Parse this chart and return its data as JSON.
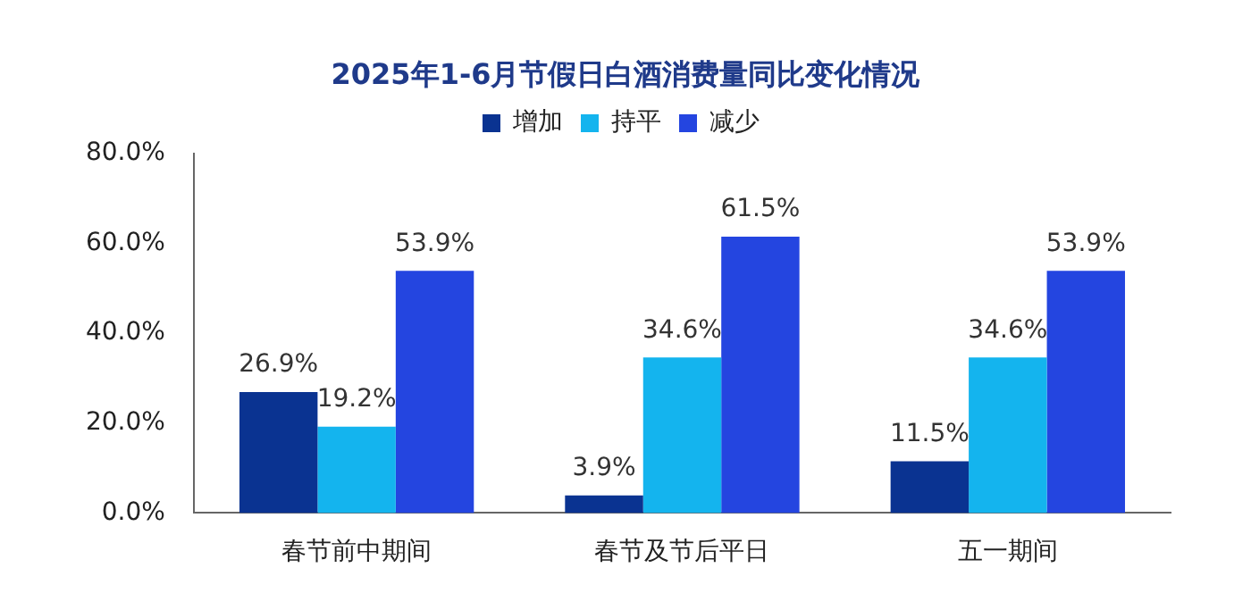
{
  "chart_data": {
    "type": "bar",
    "title": "2025年1-6月节假日白酒消费量同比变化情况",
    "categories": [
      "春节前中期间",
      "春节及节后平日",
      "五一期间"
    ],
    "series": [
      {
        "name": "增加",
        "color": "#0a3391",
        "values": [
          26.9,
          3.9,
          11.5
        ],
        "value_labels": [
          "26.9%",
          "3.9%",
          "11.5%"
        ]
      },
      {
        "name": "持平",
        "color": "#14b4ee",
        "values": [
          19.2,
          34.6,
          34.6
        ],
        "value_labels": [
          "19.2%",
          "34.6%",
          "34.6%"
        ]
      },
      {
        "name": "减少",
        "color": "#2445e0",
        "values": [
          53.9,
          61.5,
          53.9
        ],
        "value_labels": [
          "53.9%",
          "61.5%",
          "53.9%"
        ]
      }
    ],
    "ylim": [
      0,
      80
    ],
    "yticks": [
      {
        "value": 0,
        "label": "0.0%"
      },
      {
        "value": 20,
        "label": "20.0%"
      },
      {
        "value": 40,
        "label": "40.0%"
      },
      {
        "value": 60,
        "label": "60.0%"
      },
      {
        "value": 80,
        "label": "80.0%"
      }
    ],
    "grid": false,
    "legend": "top"
  }
}
